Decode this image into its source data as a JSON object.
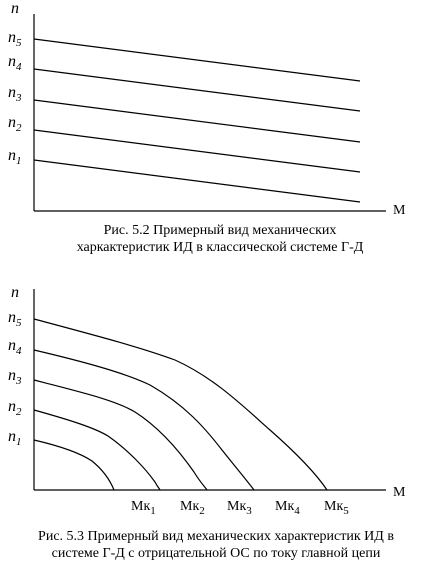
{
  "figure1": {
    "y_axis_label": "n",
    "x_axis_label": "M",
    "speed_labels": [
      {
        "base": "n",
        "sub": "5"
      },
      {
        "base": "n",
        "sub": "4"
      },
      {
        "base": "n",
        "sub": "3"
      },
      {
        "base": "n",
        "sub": "2"
      },
      {
        "base": "n",
        "sub": "1"
      }
    ],
    "caption_lines": [
      "Рис. 5.2 Примерный вид механических",
      "харкактеристик ИД в классической системе Г-Д"
    ]
  },
  "figure2": {
    "y_axis_label": "n",
    "x_axis_label": "M",
    "speed_labels": [
      {
        "base": "n",
        "sub": "5"
      },
      {
        "base": "n",
        "sub": "4"
      },
      {
        "base": "n",
        "sub": "3"
      },
      {
        "base": "n",
        "sub": "2"
      },
      {
        "base": "n",
        "sub": "1"
      }
    ],
    "torque_labels": [
      {
        "base": "Mк",
        "sub": "1"
      },
      {
        "base": "Mк",
        "sub": "2"
      },
      {
        "base": "Mк",
        "sub": "3"
      },
      {
        "base": "Mк",
        "sub": "4"
      },
      {
        "base": "Mк",
        "sub": "5"
      }
    ],
    "caption_lines": [
      "Рис. 5.3 Примерный вид механических характеристик ИД в",
      "системе Г-Д с отрицательной ОС по току главной цепи"
    ]
  }
}
